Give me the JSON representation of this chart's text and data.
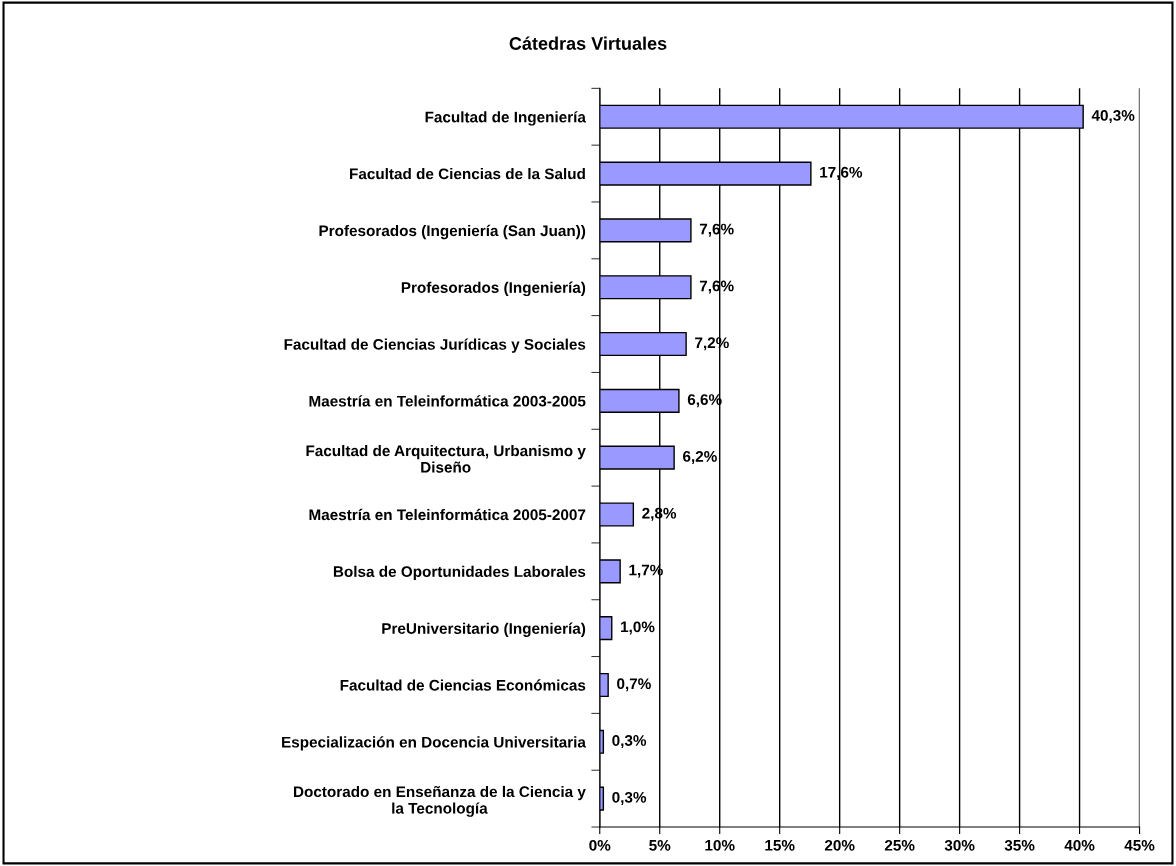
{
  "chart_data": {
    "type": "bar",
    "orientation": "horizontal",
    "title": "Cátedras Virtuales",
    "categories": [
      "Facultad de Ingeniería",
      "Facultad de Ciencias de la Salud",
      "Profesorados (Ingeniería (San Juan))",
      "Profesorados (Ingeniería)",
      "Facultad de Ciencias Jurídicas y Sociales",
      "Maestría en Teleinformática 2003-2005",
      "Facultad de Arquitectura, Urbanismo y\nDiseño",
      "Maestría en Teleinformática 2005-2007",
      "Bolsa de Oportunidades Laborales",
      "PreUniversitario (Ingeniería)",
      "Facultad de Ciencias Económicas",
      "Especialización en Docencia Universitaria",
      "Doctorado en Enseñanza de la Ciencia y\nla Tecnología"
    ],
    "values": [
      40.3,
      17.6,
      7.6,
      7.6,
      7.2,
      6.6,
      6.2,
      2.8,
      1.7,
      1.0,
      0.7,
      0.3,
      0.3
    ],
    "value_labels": [
      "40,3%",
      "17,6%",
      "7,6%",
      "7,6%",
      "7,2%",
      "6,6%",
      "6,2%",
      "2,8%",
      "1,7%",
      "1,0%",
      "0,7%",
      "0,3%",
      "0,3%"
    ],
    "color": "#9999ff",
    "xlim": [
      0,
      45
    ],
    "xticks": [
      {
        "value": 0,
        "label": "0%"
      },
      {
        "value": 5,
        "label": "5%"
      },
      {
        "value": 10,
        "label": "10%"
      },
      {
        "value": 15,
        "label": "15%"
      },
      {
        "value": 20,
        "label": "20%"
      },
      {
        "value": 25,
        "label": "25%"
      },
      {
        "value": 30,
        "label": "30%"
      },
      {
        "value": 35,
        "label": "35%"
      },
      {
        "value": 40,
        "label": "40%"
      },
      {
        "value": 45,
        "label": "45%"
      }
    ],
    "grid": "x"
  }
}
